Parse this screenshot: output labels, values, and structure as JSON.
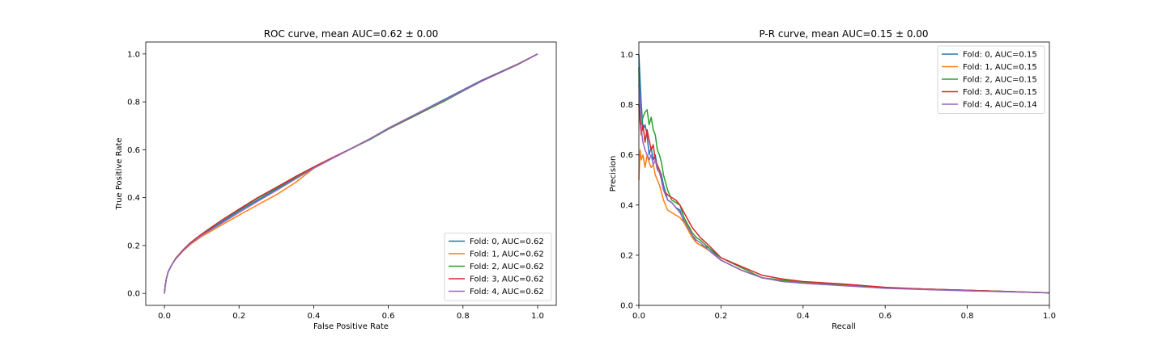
{
  "chart_data": [
    {
      "type": "line",
      "title": "ROC curve, mean AUC=0.62 ± 0.00",
      "xlabel": "False Positive Rate",
      "ylabel": "True Positive Rate",
      "xlim": [
        -0.05,
        1.05
      ],
      "ylim": [
        -0.05,
        1.05
      ],
      "xticks": [
        "0.0",
        "0.2",
        "0.4",
        "0.6",
        "0.8",
        "1.0"
      ],
      "yticks": [
        "0.0",
        "0.2",
        "0.4",
        "0.6",
        "0.8",
        "1.0"
      ],
      "grid": false,
      "legend_position": "lower-right",
      "x": [
        0,
        0.002,
        0.005,
        0.01,
        0.02,
        0.03,
        0.05,
        0.07,
        0.1,
        0.15,
        0.2,
        0.25,
        0.3,
        0.35,
        0.4,
        0.45,
        0.5,
        0.55,
        0.6,
        0.65,
        0.7,
        0.75,
        0.8,
        0.85,
        0.9,
        0.95,
        1.0
      ],
      "series": [
        {
          "name": "Fold: 0, AUC=0.62",
          "color": "#1f77b4",
          "values": [
            0,
            0.03,
            0.06,
            0.09,
            0.12,
            0.145,
            0.18,
            0.21,
            0.245,
            0.295,
            0.345,
            0.39,
            0.435,
            0.48,
            0.525,
            0.565,
            0.605,
            0.645,
            0.69,
            0.73,
            0.77,
            0.81,
            0.85,
            0.89,
            0.925,
            0.96,
            1.0
          ]
        },
        {
          "name": "Fold: 1, AUC=0.62",
          "color": "#ff7f0e",
          "values": [
            0,
            0.03,
            0.06,
            0.09,
            0.12,
            0.143,
            0.177,
            0.205,
            0.238,
            0.283,
            0.327,
            0.37,
            0.412,
            0.462,
            0.522,
            0.564,
            0.604,
            0.645,
            0.689,
            0.729,
            0.768,
            0.806,
            0.846,
            0.886,
            0.923,
            0.96,
            1.0
          ]
        },
        {
          "name": "Fold: 2, AUC=0.62",
          "color": "#2ca02c",
          "values": [
            0,
            0.03,
            0.06,
            0.09,
            0.12,
            0.146,
            0.182,
            0.212,
            0.248,
            0.302,
            0.35,
            0.397,
            0.44,
            0.484,
            0.527,
            0.566,
            0.604,
            0.642,
            0.686,
            0.725,
            0.764,
            0.803,
            0.845,
            0.887,
            0.924,
            0.96,
            1.0
          ]
        },
        {
          "name": "Fold: 3, AUC=0.62",
          "color": "#d62728",
          "values": [
            0,
            0.03,
            0.06,
            0.09,
            0.12,
            0.146,
            0.182,
            0.212,
            0.248,
            0.302,
            0.352,
            0.4,
            0.443,
            0.487,
            0.528,
            0.567,
            0.605,
            0.645,
            0.688,
            0.728,
            0.768,
            0.807,
            0.847,
            0.887,
            0.923,
            0.959,
            1.0
          ]
        },
        {
          "name": "Fold: 4, AUC=0.62",
          "color": "#9467bd",
          "values": [
            0,
            0.03,
            0.06,
            0.09,
            0.12,
            0.144,
            0.179,
            0.208,
            0.243,
            0.29,
            0.338,
            0.385,
            0.43,
            0.477,
            0.523,
            0.564,
            0.604,
            0.644,
            0.689,
            0.729,
            0.769,
            0.807,
            0.846,
            0.886,
            0.922,
            0.958,
            1.0
          ]
        }
      ]
    },
    {
      "type": "line",
      "title": "P-R curve, mean AUC=0.15 ± 0.00",
      "xlabel": "Recall",
      "ylabel": "Precision",
      "xlim": [
        0,
        1
      ],
      "ylim": [
        0,
        1.05
      ],
      "xticks": [
        "0.0",
        "0.2",
        "0.4",
        "0.6",
        "0.8",
        "1.0"
      ],
      "yticks": [
        "0.0",
        "0.2",
        "0.4",
        "0.6",
        "0.8",
        "1.0"
      ],
      "grid": false,
      "legend_position": "upper-right",
      "x": [
        0,
        0.003,
        0.006,
        0.01,
        0.015,
        0.02,
        0.025,
        0.03,
        0.035,
        0.04,
        0.045,
        0.05,
        0.055,
        0.06,
        0.07,
        0.08,
        0.09,
        0.1,
        0.11,
        0.12,
        0.13,
        0.14,
        0.15,
        0.17,
        0.2,
        0.25,
        0.3,
        0.35,
        0.4,
        0.5,
        0.6,
        0.7,
        0.8,
        0.9,
        1.0
      ],
      "series": [
        {
          "name": "Fold: 0, AUC=0.15",
          "color": "#1f77b4",
          "values": [
            1.0,
            0.9,
            0.8,
            0.7,
            0.72,
            0.68,
            0.6,
            0.63,
            0.58,
            0.6,
            0.55,
            0.54,
            0.52,
            0.48,
            0.42,
            0.41,
            0.39,
            0.38,
            0.33,
            0.31,
            0.28,
            0.25,
            0.24,
            0.23,
            0.18,
            0.14,
            0.11,
            0.1,
            0.09,
            0.08,
            0.07,
            0.065,
            0.06,
            0.055,
            0.05
          ]
        },
        {
          "name": "Fold: 1, AUC=0.15",
          "color": "#ff7f0e",
          "values": [
            0.5,
            0.62,
            0.58,
            0.6,
            0.55,
            0.6,
            0.57,
            0.55,
            0.56,
            0.52,
            0.5,
            0.48,
            0.45,
            0.42,
            0.38,
            0.37,
            0.36,
            0.35,
            0.33,
            0.3,
            0.27,
            0.25,
            0.24,
            0.22,
            0.18,
            0.14,
            0.11,
            0.1,
            0.09,
            0.08,
            0.07,
            0.065,
            0.06,
            0.055,
            0.05
          ]
        },
        {
          "name": "Fold: 2, AUC=0.15",
          "color": "#2ca02c",
          "values": [
            0.95,
            0.75,
            0.72,
            0.75,
            0.77,
            0.78,
            0.72,
            0.75,
            0.7,
            0.68,
            0.62,
            0.6,
            0.57,
            0.52,
            0.46,
            0.42,
            0.41,
            0.4,
            0.35,
            0.32,
            0.29,
            0.27,
            0.26,
            0.23,
            0.19,
            0.15,
            0.11,
            0.1,
            0.09,
            0.08,
            0.07,
            0.065,
            0.06,
            0.055,
            0.05
          ]
        },
        {
          "name": "Fold: 3, AUC=0.15",
          "color": "#d62728",
          "values": [
            0.8,
            0.73,
            0.68,
            0.72,
            0.65,
            0.7,
            0.66,
            0.62,
            0.64,
            0.58,
            0.56,
            0.54,
            0.5,
            0.46,
            0.44,
            0.43,
            0.42,
            0.4,
            0.37,
            0.34,
            0.31,
            0.29,
            0.27,
            0.24,
            0.19,
            0.155,
            0.12,
            0.105,
            0.095,
            0.085,
            0.072,
            0.065,
            0.06,
            0.055,
            0.05
          ]
        },
        {
          "name": "Fold: 4, AUC=0.14",
          "color": "#9467bd",
          "values": [
            0.88,
            0.82,
            0.7,
            0.65,
            0.62,
            0.6,
            0.58,
            0.6,
            0.56,
            0.58,
            0.54,
            0.53,
            0.5,
            0.46,
            0.42,
            0.41,
            0.39,
            0.37,
            0.34,
            0.31,
            0.28,
            0.26,
            0.25,
            0.22,
            0.18,
            0.14,
            0.11,
            0.095,
            0.088,
            0.078,
            0.068,
            0.063,
            0.058,
            0.054,
            0.05
          ]
        }
      ]
    }
  ]
}
